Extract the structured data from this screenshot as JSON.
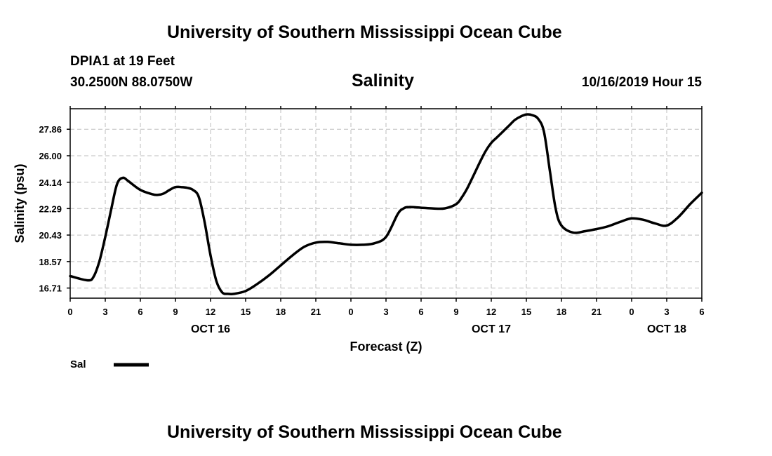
{
  "header": {
    "title_top": "University of Southern Mississippi Ocean Cube",
    "station": "DPIA1 at 19 Feet",
    "coords": "30.2500N 88.0750W",
    "timestamp": "10/16/2019 Hour 15",
    "title_bottom": "University of Southern Mississippi Ocean Cube"
  },
  "chart_data": {
    "type": "line",
    "title": "Salinity",
    "xlabel": "Forecast (Z)",
    "ylabel": "Salinity (psu)",
    "xlim": [
      0,
      54
    ],
    "ylim": [
      16.0,
      29.3
    ],
    "yticks": [
      "16.71",
      "18.57",
      "20.43",
      "22.29",
      "24.14",
      "26.00",
      "27.86"
    ],
    "xtick_hours": [
      0,
      3,
      6,
      9,
      12,
      15,
      18,
      21,
      24,
      27,
      30,
      33,
      36,
      39,
      42,
      45,
      48,
      51,
      54
    ],
    "xtick_labels": [
      "0",
      "3",
      "6",
      "9",
      "12",
      "15",
      "18",
      "21",
      "0",
      "3",
      "6",
      "9",
      "12",
      "15",
      "18",
      "21",
      "0",
      "3",
      "6"
    ],
    "date_labels": [
      {
        "text": "OCT 16",
        "hour": 12
      },
      {
        "text": "OCT 17",
        "hour": 36
      },
      {
        "text": "OCT 18",
        "hour": 51
      }
    ],
    "grid": true,
    "legend": [
      {
        "name": "Sal"
      }
    ],
    "series": [
      {
        "name": "Sal",
        "x": [
          0,
          1.5,
          2,
          2.5,
          3,
          3.5,
          4,
          4.5,
          5,
          6,
          7,
          7.5,
          8,
          8.5,
          9,
          9.5,
          10,
          10.5,
          11,
          11.5,
          12,
          12.5,
          13,
          13.5,
          14,
          15,
          16,
          17,
          18,
          19,
          20,
          21,
          22,
          23,
          24,
          25,
          26,
          27,
          28,
          28.5,
          29,
          30,
          31,
          32,
          33,
          33.5,
          34,
          35,
          35.5,
          36,
          36.5,
          37,
          37.5,
          38,
          38.5,
          39,
          39.5,
          40,
          40.5,
          41,
          41.5,
          42,
          43,
          44,
          45,
          46,
          47,
          48,
          49,
          50,
          51,
          52,
          53,
          54
        ],
        "values": [
          17.55,
          17.25,
          17.5,
          18.6,
          20.3,
          22.2,
          24.0,
          24.45,
          24.2,
          23.6,
          23.3,
          23.25,
          23.35,
          23.6,
          23.8,
          23.8,
          23.75,
          23.6,
          23.1,
          21.3,
          19.0,
          17.2,
          16.4,
          16.3,
          16.3,
          16.5,
          17.0,
          17.6,
          18.3,
          19.0,
          19.6,
          19.9,
          19.95,
          19.85,
          19.75,
          19.75,
          19.85,
          20.3,
          21.9,
          22.3,
          22.4,
          22.35,
          22.3,
          22.3,
          22.6,
          23.1,
          23.8,
          25.5,
          26.3,
          26.9,
          27.3,
          27.7,
          28.1,
          28.5,
          28.75,
          28.9,
          28.85,
          28.6,
          27.7,
          25.0,
          22.3,
          21.1,
          20.6,
          20.7,
          20.85,
          21.05,
          21.35,
          21.6,
          21.5,
          21.25,
          21.1,
          21.7,
          22.6,
          23.4
        ]
      }
    ]
  }
}
